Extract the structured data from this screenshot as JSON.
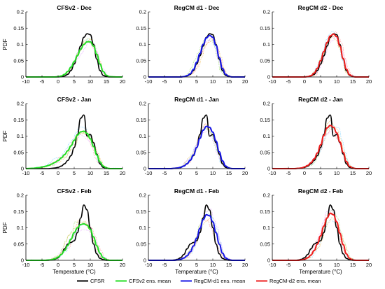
{
  "colors": {
    "CFSR": "#000000",
    "CFSv2": "#22dd22",
    "RegCM-d1": "#1515e6",
    "RegCM-d2": "#ee1c1c",
    "ensemble_members": [
      "#ff9a9a",
      "#8ad8ff",
      "#a6e07a",
      "#e8b0ff",
      "#f2c46a"
    ]
  },
  "chart_data": {
    "type": "line",
    "xlabel": "Temperature (°C)",
    "ylabel": "PDF",
    "xlim": [
      -10,
      20
    ],
    "ylim": [
      0,
      0.2
    ],
    "xticks": [
      -10,
      -5,
      0,
      5,
      10,
      15,
      20
    ],
    "yticks": [
      0,
      0.05,
      0.1,
      0.15,
      0.2
    ],
    "xtick_labels": [
      "-10",
      "-5",
      "0",
      "5",
      "10",
      "15",
      "20"
    ],
    "ytick_labels": [
      "0",
      "0.05",
      "0.1",
      "0.15",
      "0.2"
    ],
    "x": [
      -10,
      -8,
      -6,
      -5,
      -4,
      -3,
      -2,
      -1,
      0,
      1,
      2,
      3,
      4,
      5,
      6,
      7,
      8,
      9,
      10,
      11,
      12,
      13,
      14,
      15,
      16,
      18,
      20
    ],
    "legend": {
      "placement": "bottom",
      "entries": [
        "CFSR",
        "CFSv2 ens. mean",
        "RegCM-d1 ens. mean",
        "RegCM-d2 ens. mean"
      ]
    },
    "panels": [
      {
        "title": "CFSv2 - Dec",
        "model": "CFSv2",
        "series": [
          {
            "name": "CFSR",
            "values": [
              0,
              0,
              0,
              0,
              0,
              0,
              0,
              0,
              0,
              0.001,
              0.003,
              0.008,
              0.02,
              0.04,
              0.065,
              0.095,
              0.122,
              0.133,
              0.13,
              0.1,
              0.055,
              0.02,
              0.005,
              0.001,
              0,
              0,
              0
            ]
          },
          {
            "name": "CFSv2 ens. mean",
            "values": [
              0,
              0,
              0,
              0,
              0,
              0,
              0,
              0,
              0.001,
              0.003,
              0.008,
              0.017,
              0.03,
              0.047,
              0.066,
              0.085,
              0.1,
              0.108,
              0.108,
              0.095,
              0.07,
              0.04,
              0.017,
              0.005,
              0.001,
              0,
              0
            ]
          }
        ]
      },
      {
        "title": "RegCM d1 - Dec",
        "model": "RegCM-d1",
        "series": [
          {
            "name": "CFSR",
            "values": [
              0,
              0,
              0,
              0,
              0,
              0,
              0,
              0,
              0,
              0.001,
              0.003,
              0.008,
              0.02,
              0.04,
              0.065,
              0.095,
              0.122,
              0.133,
              0.13,
              0.1,
              0.055,
              0.02,
              0.005,
              0.001,
              0,
              0,
              0
            ]
          },
          {
            "name": "RegCM-d1 ens. mean",
            "values": [
              0,
              0,
              0,
              0,
              0,
              0,
              0,
              0,
              0,
              0.001,
              0.004,
              0.01,
              0.023,
              0.045,
              0.072,
              0.1,
              0.12,
              0.128,
              0.122,
              0.097,
              0.06,
              0.026,
              0.008,
              0.002,
              0,
              0,
              0
            ]
          }
        ]
      },
      {
        "title": "RegCM d2 - Dec",
        "model": "RegCM-d2",
        "series": [
          {
            "name": "CFSR",
            "values": [
              0,
              0,
              0,
              0,
              0,
              0,
              0,
              0,
              0,
              0.001,
              0.003,
              0.008,
              0.02,
              0.04,
              0.065,
              0.095,
              0.122,
              0.133,
              0.13,
              0.1,
              0.055,
              0.02,
              0.005,
              0.001,
              0,
              0,
              0
            ]
          },
          {
            "name": "RegCM-d2 ens. mean",
            "values": [
              0,
              0,
              0,
              0,
              0,
              0,
              0,
              0,
              0,
              0.001,
              0.004,
              0.012,
              0.027,
              0.05,
              0.078,
              0.106,
              0.126,
              0.132,
              0.124,
              0.095,
              0.057,
              0.024,
              0.007,
              0.001,
              0,
              0,
              0
            ]
          }
        ]
      },
      {
        "title": "CFSv2 - Jan",
        "model": "CFSv2",
        "series": [
          {
            "name": "CFSR",
            "values": [
              0,
              0,
              0,
              0,
              0,
              0,
              0.001,
              0.002,
              0.004,
              0.008,
              0.015,
              0.025,
              0.04,
              0.065,
              0.105,
              0.155,
              0.165,
              0.1,
              0.105,
              0.08,
              0.045,
              0.015,
              0.004,
              0.001,
              0,
              0,
              0
            ]
          },
          {
            "name": "CFSv2 ens. mean",
            "values": [
              0,
              0.001,
              0.003,
              0.005,
              0.007,
              0.01,
              0.014,
              0.019,
              0.025,
              0.033,
              0.043,
              0.055,
              0.07,
              0.087,
              0.103,
              0.113,
              0.115,
              0.108,
              0.092,
              0.068,
              0.042,
              0.021,
              0.008,
              0.002,
              0,
              0,
              0
            ]
          }
        ]
      },
      {
        "title": "RegCM d1 - Jan",
        "model": "RegCM-d1",
        "series": [
          {
            "name": "CFSR",
            "values": [
              0,
              0,
              0,
              0,
              0,
              0,
              0.001,
              0.002,
              0.004,
              0.008,
              0.015,
              0.025,
              0.04,
              0.065,
              0.105,
              0.155,
              0.165,
              0.1,
              0.105,
              0.08,
              0.045,
              0.015,
              0.004,
              0.001,
              0,
              0,
              0
            ]
          },
          {
            "name": "RegCM-d1 ens. mean",
            "values": [
              0,
              0,
              0,
              0,
              0,
              0,
              0.001,
              0.002,
              0.004,
              0.008,
              0.015,
              0.026,
              0.042,
              0.065,
              0.093,
              0.118,
              0.13,
              0.127,
              0.112,
              0.085,
              0.052,
              0.024,
              0.008,
              0.002,
              0,
              0,
              0
            ]
          }
        ]
      },
      {
        "title": "RegCM d2 - Jan",
        "model": "RegCM-d2",
        "series": [
          {
            "name": "CFSR",
            "values": [
              0,
              0,
              0,
              0,
              0,
              0,
              0.001,
              0.002,
              0.004,
              0.008,
              0.015,
              0.025,
              0.04,
              0.065,
              0.105,
              0.155,
              0.165,
              0.1,
              0.105,
              0.08,
              0.045,
              0.015,
              0.004,
              0.001,
              0,
              0,
              0
            ]
          },
          {
            "name": "RegCM-d2 ens. mean",
            "values": [
              0,
              0,
              0,
              0,
              0,
              0,
              0.001,
              0.002,
              0.005,
              0.01,
              0.018,
              0.03,
              0.048,
              0.073,
              0.102,
              0.125,
              0.133,
              0.127,
              0.11,
              0.082,
              0.05,
              0.022,
              0.007,
              0.002,
              0,
              0,
              0
            ]
          }
        ]
      },
      {
        "title": "CFSv2 - Feb",
        "model": "CFSv2",
        "series": [
          {
            "name": "CFSR",
            "values": [
              0,
              0,
              0,
              0,
              0,
              0,
              0.001,
              0.003,
              0.008,
              0.018,
              0.035,
              0.05,
              0.055,
              0.06,
              0.085,
              0.13,
              0.17,
              0.155,
              0.1,
              0.05,
              0.02,
              0.006,
              0.002,
              0,
              0,
              0,
              0
            ]
          },
          {
            "name": "CFSv2 ens. mean",
            "values": [
              0,
              0,
              0,
              0,
              0,
              0.001,
              0.002,
              0.005,
              0.01,
              0.018,
              0.03,
              0.046,
              0.065,
              0.085,
              0.1,
              0.11,
              0.112,
              0.108,
              0.095,
              0.072,
              0.045,
              0.022,
              0.008,
              0.002,
              0,
              0,
              0
            ]
          }
        ]
      },
      {
        "title": "RegCM d1 - Feb",
        "model": "RegCM-d1",
        "series": [
          {
            "name": "CFSR",
            "values": [
              0,
              0,
              0,
              0,
              0,
              0,
              0.001,
              0.003,
              0.008,
              0.018,
              0.035,
              0.05,
              0.055,
              0.06,
              0.085,
              0.13,
              0.17,
              0.155,
              0.1,
              0.05,
              0.02,
              0.006,
              0.002,
              0,
              0,
              0,
              0
            ]
          },
          {
            "name": "RegCM-d1 ens. mean",
            "values": [
              0,
              0,
              0,
              0,
              0,
              0,
              0,
              0.001,
              0.003,
              0.007,
              0.014,
              0.026,
              0.044,
              0.068,
              0.098,
              0.125,
              0.14,
              0.137,
              0.118,
              0.085,
              0.05,
              0.022,
              0.007,
              0.002,
              0,
              0,
              0
            ]
          }
        ]
      },
      {
        "title": "RegCM d2 - Feb",
        "model": "RegCM-d2",
        "series": [
          {
            "name": "CFSR",
            "values": [
              0,
              0,
              0,
              0,
              0,
              0,
              0.001,
              0.003,
              0.008,
              0.018,
              0.035,
              0.05,
              0.055,
              0.06,
              0.085,
              0.13,
              0.17,
              0.155,
              0.1,
              0.05,
              0.02,
              0.006,
              0.002,
              0,
              0,
              0,
              0
            ]
          },
          {
            "name": "RegCM-d2 ens. mean",
            "values": [
              0,
              0,
              0,
              0,
              0,
              0,
              0,
              0.001,
              0.003,
              0.008,
              0.016,
              0.03,
              0.05,
              0.075,
              0.105,
              0.13,
              0.145,
              0.14,
              0.118,
              0.083,
              0.048,
              0.02,
              0.006,
              0.001,
              0,
              0,
              0
            ]
          }
        ]
      }
    ]
  }
}
